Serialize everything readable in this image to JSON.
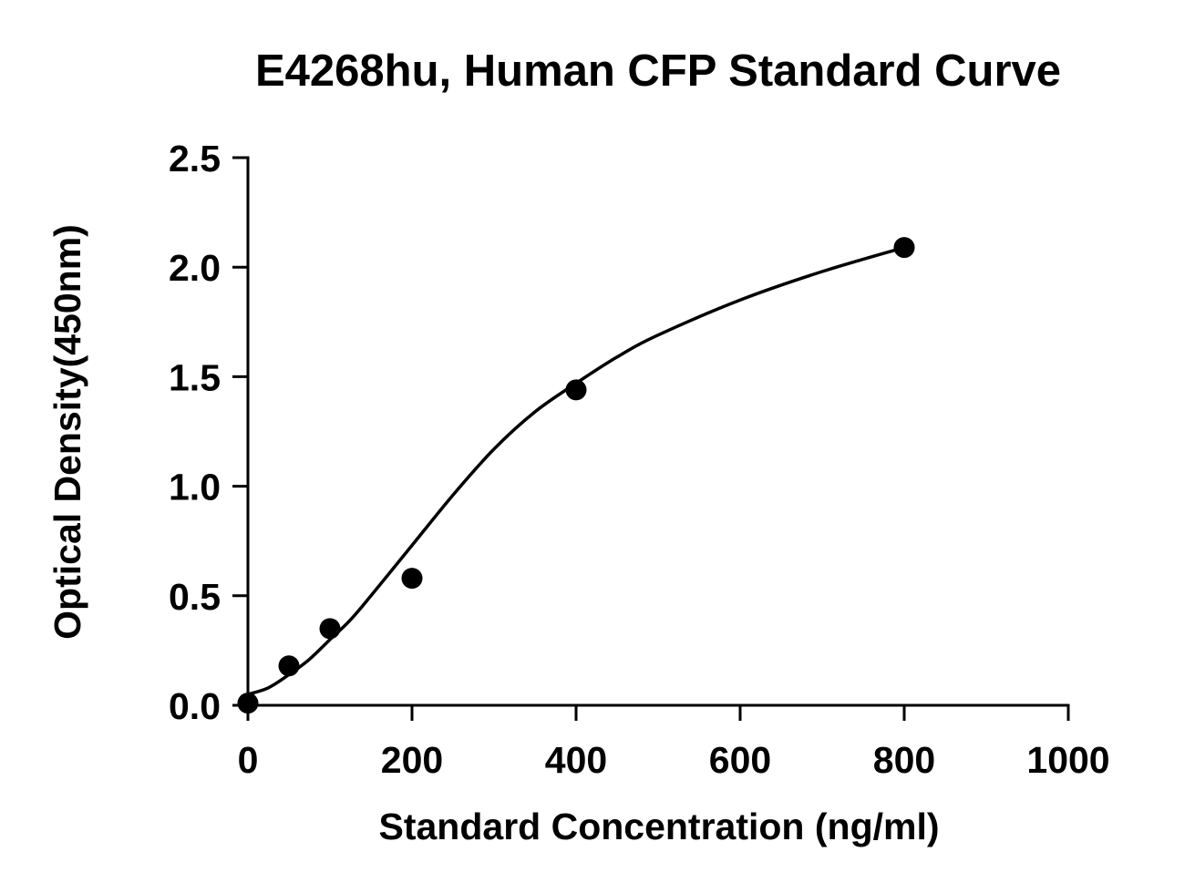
{
  "chart_data": {
    "type": "scatter",
    "title": "E4268hu, Human CFP Standard Curve",
    "xlabel": "Standard Concentration (ng/ml)",
    "ylabel": "Optical Density(450nm)",
    "xlim": [
      0,
      1000
    ],
    "ylim": [
      0,
      2.5
    ],
    "x_ticks": [
      0,
      200,
      400,
      600,
      800,
      1000
    ],
    "x_tick_labels": [
      "0",
      "200",
      "400",
      "600",
      "800",
      "1000"
    ],
    "y_ticks": [
      0,
      0.5,
      1.0,
      1.5,
      2.0,
      2.5
    ],
    "y_tick_labels": [
      "0.0",
      "0.5",
      "1.0",
      "1.5",
      "2.0",
      "2.5"
    ],
    "grid": false,
    "legend": "none",
    "series": [
      {
        "kind": "points",
        "color": "#000000",
        "x": [
          0,
          50,
          100,
          200,
          400,
          800
        ],
        "y": [
          0.01,
          0.18,
          0.35,
          0.58,
          1.44,
          2.09
        ]
      },
      {
        "kind": "fit-curve",
        "color": "#000000",
        "x": [
          0,
          25,
          50,
          75,
          100,
          125,
          150,
          200,
          250,
          300,
          350,
          400,
          450,
          500,
          600,
          700,
          800
        ],
        "y": [
          0.05,
          0.08,
          0.14,
          0.21,
          0.3,
          0.39,
          0.5,
          0.73,
          0.96,
          1.17,
          1.34,
          1.47,
          1.59,
          1.69,
          1.85,
          1.98,
          2.09
        ]
      }
    ]
  }
}
